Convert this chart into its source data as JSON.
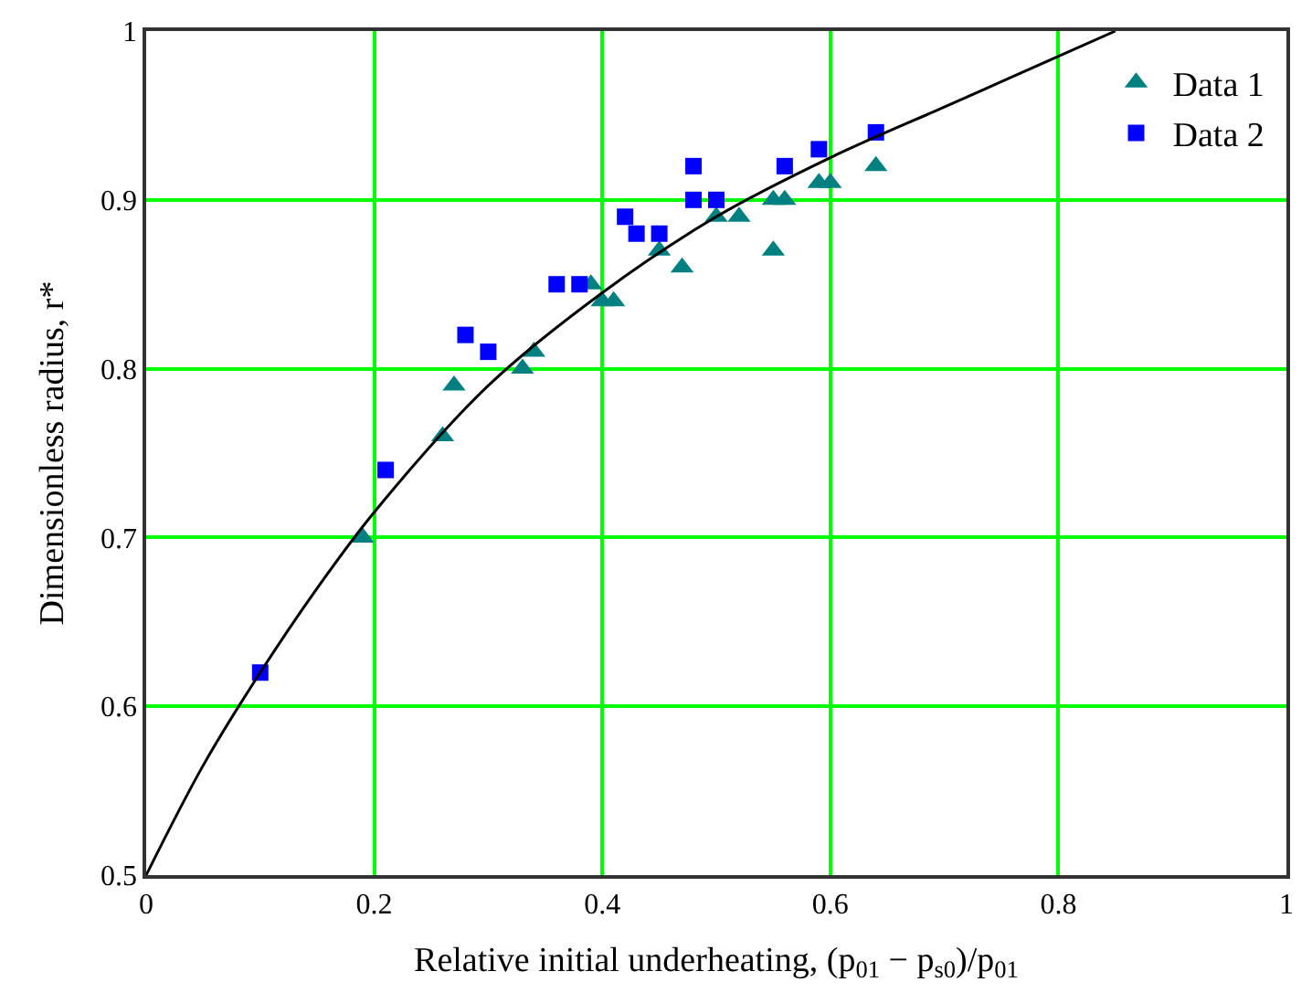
{
  "chart_data": {
    "type": "scatter",
    "xlabel": "Relative initial underheating, (p$_{01}$ − p$_{s0}$)/p$_{01}$",
    "ylabel": "Dimensionless radius, r*",
    "xlim": [
      0,
      1
    ],
    "ylim": [
      0.5,
      1
    ],
    "xticks": [
      0,
      0.2,
      0.4,
      0.6,
      0.8,
      1
    ],
    "yticks": [
      0.5,
      0.6,
      0.7,
      0.8,
      0.9,
      1
    ],
    "grid": true,
    "legend": "top right",
    "series": [
      {
        "name": "Data 1",
        "color": "#008080",
        "marker": "triangle",
        "x": [
          0.19,
          0.26,
          0.27,
          0.33,
          0.34,
          0.39,
          0.4,
          0.41,
          0.45,
          0.47,
          0.5,
          0.52,
          0.55,
          0.55,
          0.56,
          0.59,
          0.6,
          0.64
        ],
        "values": [
          0.7,
          0.76,
          0.79,
          0.8,
          0.81,
          0.85,
          0.84,
          0.84,
          0.87,
          0.86,
          0.89,
          0.89,
          0.87,
          0.9,
          0.9,
          0.91,
          0.91,
          0.92
        ]
      },
      {
        "name": "Data 2",
        "color": "#0000ff",
        "marker": "square",
        "x": [
          0.1,
          0.21,
          0.28,
          0.3,
          0.36,
          0.38,
          0.42,
          0.43,
          0.45,
          0.48,
          0.48,
          0.5,
          0.56,
          0.59,
          0.64
        ],
        "values": [
          0.62,
          0.74,
          0.82,
          0.81,
          0.85,
          0.85,
          0.89,
          0.88,
          0.88,
          0.92,
          0.9,
          0.9,
          0.92,
          0.93,
          0.94
        ]
      },
      {
        "type": "line",
        "color": "#000000",
        "marker": "none",
        "line_style": "solid",
        "x": [
          0,
          0.05,
          0.1,
          0.15,
          0.2,
          0.3,
          0.4,
          0.5,
          0.6,
          0.7,
          0.75,
          0.8,
          0.85
        ],
        "values": [
          0.5,
          0.565,
          0.62,
          0.67,
          0.715,
          0.79,
          0.845,
          0.89,
          0.925,
          0.955,
          0.97,
          0.985,
          1.0
        ]
      }
    ]
  }
}
